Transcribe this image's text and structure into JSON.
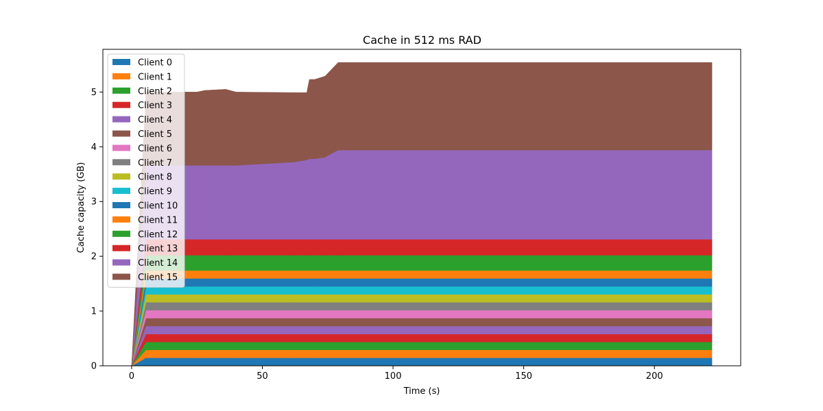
{
  "chart_data": {
    "type": "area",
    "stacked": true,
    "title": "Cache in  512 ms RAD",
    "xlabel": "Time (s)",
    "ylabel": "Cache capacity (GB)",
    "xlim": [
      -11,
      233
    ],
    "ylim": [
      0,
      5.78
    ],
    "xticks": [
      0,
      50,
      100,
      150,
      200
    ],
    "yticks": [
      0,
      1,
      2,
      3,
      4,
      5
    ],
    "legend_position": "upper-left",
    "grid": false,
    "x": [
      0,
      5.5,
      25,
      28,
      36,
      40,
      62,
      67,
      68,
      70,
      74,
      79,
      222
    ],
    "series": [
      {
        "name": "Client 0",
        "color": "#1f77b4",
        "values": [
          0,
          0.145,
          0.145,
          0.145,
          0.145,
          0.145,
          0.145,
          0.145,
          0.145,
          0.145,
          0.145,
          0.145,
          0.145
        ]
      },
      {
        "name": "Client 1",
        "color": "#ff7f0e",
        "values": [
          0,
          0.145,
          0.145,
          0.145,
          0.145,
          0.145,
          0.145,
          0.145,
          0.145,
          0.145,
          0.145,
          0.145,
          0.145
        ]
      },
      {
        "name": "Client 2",
        "color": "#2ca02c",
        "values": [
          0,
          0.145,
          0.145,
          0.145,
          0.145,
          0.145,
          0.145,
          0.145,
          0.145,
          0.145,
          0.145,
          0.145,
          0.145
        ]
      },
      {
        "name": "Client 3",
        "color": "#d62728",
        "values": [
          0,
          0.145,
          0.145,
          0.145,
          0.145,
          0.145,
          0.145,
          0.145,
          0.145,
          0.145,
          0.145,
          0.145,
          0.145
        ]
      },
      {
        "name": "Client 4",
        "color": "#9467bd",
        "values": [
          0,
          0.145,
          0.145,
          0.145,
          0.145,
          0.145,
          0.145,
          0.145,
          0.145,
          0.145,
          0.145,
          0.145,
          0.145
        ]
      },
      {
        "name": "Client 5",
        "color": "#8c564b",
        "values": [
          0,
          0.145,
          0.145,
          0.145,
          0.145,
          0.145,
          0.145,
          0.145,
          0.145,
          0.145,
          0.145,
          0.145,
          0.145
        ]
      },
      {
        "name": "Client 6",
        "color": "#e377c2",
        "values": [
          0,
          0.145,
          0.145,
          0.145,
          0.145,
          0.145,
          0.145,
          0.145,
          0.145,
          0.145,
          0.145,
          0.145,
          0.145
        ]
      },
      {
        "name": "Client 7",
        "color": "#7f7f7f",
        "values": [
          0,
          0.145,
          0.145,
          0.145,
          0.145,
          0.145,
          0.145,
          0.145,
          0.145,
          0.145,
          0.145,
          0.145,
          0.145
        ]
      },
      {
        "name": "Client 8",
        "color": "#bcbd22",
        "values": [
          0,
          0.145,
          0.145,
          0.145,
          0.145,
          0.145,
          0.145,
          0.145,
          0.145,
          0.145,
          0.145,
          0.145,
          0.145
        ]
      },
      {
        "name": "Client 9",
        "color": "#17becf",
        "values": [
          0,
          0.145,
          0.145,
          0.145,
          0.145,
          0.145,
          0.145,
          0.145,
          0.145,
          0.145,
          0.145,
          0.145,
          0.145
        ]
      },
      {
        "name": "Client 10",
        "color": "#1f77b4",
        "values": [
          0,
          0.145,
          0.145,
          0.145,
          0.145,
          0.145,
          0.145,
          0.145,
          0.145,
          0.145,
          0.145,
          0.145,
          0.145
        ]
      },
      {
        "name": "Client 11",
        "color": "#ff7f0e",
        "values": [
          0,
          0.145,
          0.145,
          0.145,
          0.145,
          0.145,
          0.145,
          0.145,
          0.145,
          0.145,
          0.145,
          0.145,
          0.145
        ]
      },
      {
        "name": "Client 12",
        "color": "#2ca02c",
        "values": [
          0,
          0.28,
          0.28,
          0.28,
          0.28,
          0.28,
          0.28,
          0.28,
          0.28,
          0.28,
          0.28,
          0.28,
          0.28
        ]
      },
      {
        "name": "Client 13",
        "color": "#d62728",
        "values": [
          0,
          0.29,
          0.29,
          0.29,
          0.29,
          0.29,
          0.29,
          0.29,
          0.29,
          0.29,
          0.29,
          0.29,
          0.29
        ]
      },
      {
        "name": "Client 14",
        "color": "#9467bd",
        "values": [
          0,
          1.35,
          1.35,
          1.35,
          1.35,
          1.35,
          1.41,
          1.45,
          1.47,
          1.47,
          1.5,
          1.63,
          1.63
        ]
      },
      {
        "name": "Client 15",
        "color": "#8c564b",
        "values": [
          0,
          1.34,
          1.34,
          1.37,
          1.39,
          1.34,
          1.27,
          1.23,
          1.45,
          1.45,
          1.48,
          1.6,
          1.6
        ]
      }
    ]
  }
}
